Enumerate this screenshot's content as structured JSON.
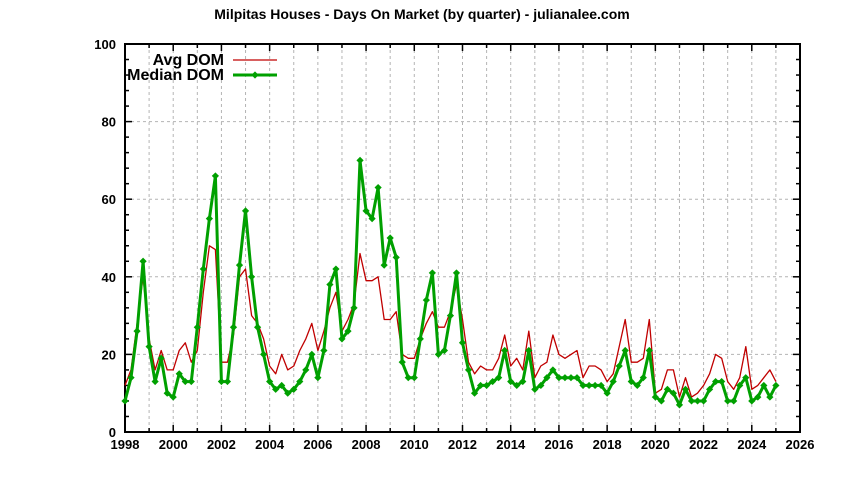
{
  "page": {
    "background": "#ffffff"
  },
  "chart_data": {
    "type": "line",
    "title": "Milpitas Houses - Days On Market (by quarter) - julianalee.com",
    "xlabel": "",
    "ylabel": "",
    "x_min": 1998,
    "x_max": 2026,
    "ylim": [
      0,
      100
    ],
    "y_major_step": 20,
    "y_minor_step": 4,
    "x_label_step_years": 2,
    "x_grid_step_years": 1,
    "grid": "dashed",
    "legend_position": "top-left-inside",
    "x_tick_labels": [
      "1998",
      "2000",
      "2002",
      "2004",
      "2006",
      "2008",
      "2010",
      "2012",
      "2014",
      "2016",
      "2018",
      "2020",
      "2022",
      "2024",
      "2026"
    ],
    "y_tick_labels": [
      "0",
      "20",
      "40",
      "60",
      "80",
      "100"
    ],
    "points_per_year": 4,
    "first_quarter": "1998-Q1",
    "last_quarter": "2025-Q1",
    "colors": {
      "avg_line": "#c00000",
      "median_line": "#00a000",
      "grid": "#b4b4b4",
      "axis": "#000000",
      "background": "#ffffff"
    },
    "series": [
      {
        "name": "Avg DOM",
        "color": "#c00000",
        "line_width": 1.3,
        "markers": false,
        "values": [
          12,
          16,
          28,
          40,
          24,
          16,
          21,
          16,
          16,
          21,
          23,
          18,
          21,
          36,
          48,
          47,
          18,
          18,
          25,
          40,
          42,
          30,
          28,
          24,
          17,
          15,
          20,
          16,
          17,
          21,
          24,
          28,
          21,
          26,
          32,
          36,
          26,
          29,
          33,
          46,
          39,
          39,
          40,
          29,
          29,
          31,
          20,
          19,
          19,
          24,
          28,
          31,
          27,
          27,
          31,
          38,
          29,
          18,
          15,
          17,
          16,
          16,
          19,
          25,
          17,
          19,
          16,
          26,
          14,
          17,
          18,
          25,
          20,
          19,
          20,
          21,
          14,
          17,
          17,
          16,
          13,
          15,
          22,
          29,
          18,
          18,
          19,
          29,
          10,
          11,
          16,
          16,
          9,
          14,
          9,
          10,
          12,
          15,
          20,
          19,
          13,
          11,
          14,
          22,
          11,
          12,
          14,
          16,
          13
        ]
      },
      {
        "name": "Median DOM",
        "color": "#00a000",
        "line_width": 3,
        "markers": true,
        "marker_shape": "diamond",
        "values": [
          8,
          14,
          26,
          44,
          22,
          13,
          19,
          10,
          9,
          15,
          13,
          13,
          27,
          42,
          55,
          66,
          13,
          13,
          27,
          43,
          57,
          40,
          27,
          20,
          13,
          11,
          12,
          10,
          11,
          13,
          16,
          20,
          14,
          21,
          38,
          42,
          24,
          26,
          32,
          70,
          57,
          55,
          63,
          43,
          50,
          45,
          18,
          14,
          14,
          24,
          34,
          41,
          20,
          21,
          30,
          41,
          23,
          16,
          10,
          12,
          12,
          13,
          14,
          21,
          13,
          12,
          13,
          21,
          11,
          12,
          14,
          16,
          14,
          14,
          14,
          14,
          12,
          12,
          12,
          12,
          10,
          13,
          17,
          21,
          13,
          12,
          14,
          21,
          9,
          8,
          11,
          10,
          7,
          11,
          8,
          8,
          8,
          11,
          13,
          13,
          8,
          8,
          12,
          14,
          8,
          9,
          12,
          9,
          12
        ]
      }
    ]
  }
}
